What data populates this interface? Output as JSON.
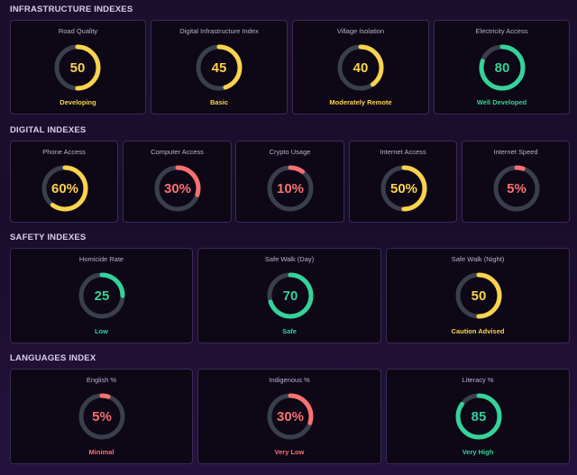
{
  "colors": {
    "green": "#34d399",
    "yellow": "#fcd34d",
    "red": "#f87171",
    "track": "#3a3f4c"
  },
  "sections": [
    {
      "title": "INFRASTRUCTURE INDEXES",
      "cards": [
        {
          "title": "Road Quality",
          "value": "50",
          "progress": 50,
          "status": "Developing",
          "color": "yellow"
        },
        {
          "title": "Digital Infrastructure Index",
          "value": "45",
          "progress": 45,
          "status": "Basic",
          "color": "yellow"
        },
        {
          "title": "Village Isolation",
          "value": "40",
          "progress": 40,
          "status": "Moderately Remote",
          "color": "yellow"
        },
        {
          "title": "Electricity Access",
          "value": "80",
          "progress": 80,
          "status": "Well Developed",
          "color": "green"
        }
      ]
    },
    {
      "title": "DIGITAL INDEXES",
      "cards": [
        {
          "title": "Phone Access",
          "value": "60%",
          "progress": 60,
          "status": "",
          "color": "yellow"
        },
        {
          "title": "Computer Access",
          "value": "30%",
          "progress": 30,
          "status": "",
          "color": "red"
        },
        {
          "title": "Crypto Usage",
          "value": "10%",
          "progress": 10,
          "status": "",
          "color": "red"
        },
        {
          "title": "Internet Access",
          "value": "50%",
          "progress": 50,
          "status": "",
          "color": "yellow"
        },
        {
          "title": "Internet Speed",
          "value": "5%",
          "progress": 5,
          "status": "",
          "color": "red"
        }
      ]
    },
    {
      "title": "SAFETY INDEXES",
      "cards": [
        {
          "title": "Homicide Rate",
          "value": "25",
          "progress": 25,
          "status": "Low",
          "color": "green"
        },
        {
          "title": "Safe Walk (Day)",
          "value": "70",
          "progress": 70,
          "status": "Safe",
          "color": "green"
        },
        {
          "title": "Safe Walk (Night)",
          "value": "50",
          "progress": 50,
          "status": "Caution Advised",
          "color": "yellow"
        }
      ]
    },
    {
      "title": "LANGUAGES INDEX",
      "cards": [
        {
          "title": "English %",
          "value": "5%",
          "progress": 5,
          "status": "Minimal",
          "color": "red"
        },
        {
          "title": "Indigenous %",
          "value": "30%",
          "progress": 30,
          "status": "Very Low",
          "color": "red"
        },
        {
          "title": "Literacy %",
          "value": "85",
          "progress": 85,
          "status": "Very High",
          "color": "green"
        }
      ]
    }
  ]
}
